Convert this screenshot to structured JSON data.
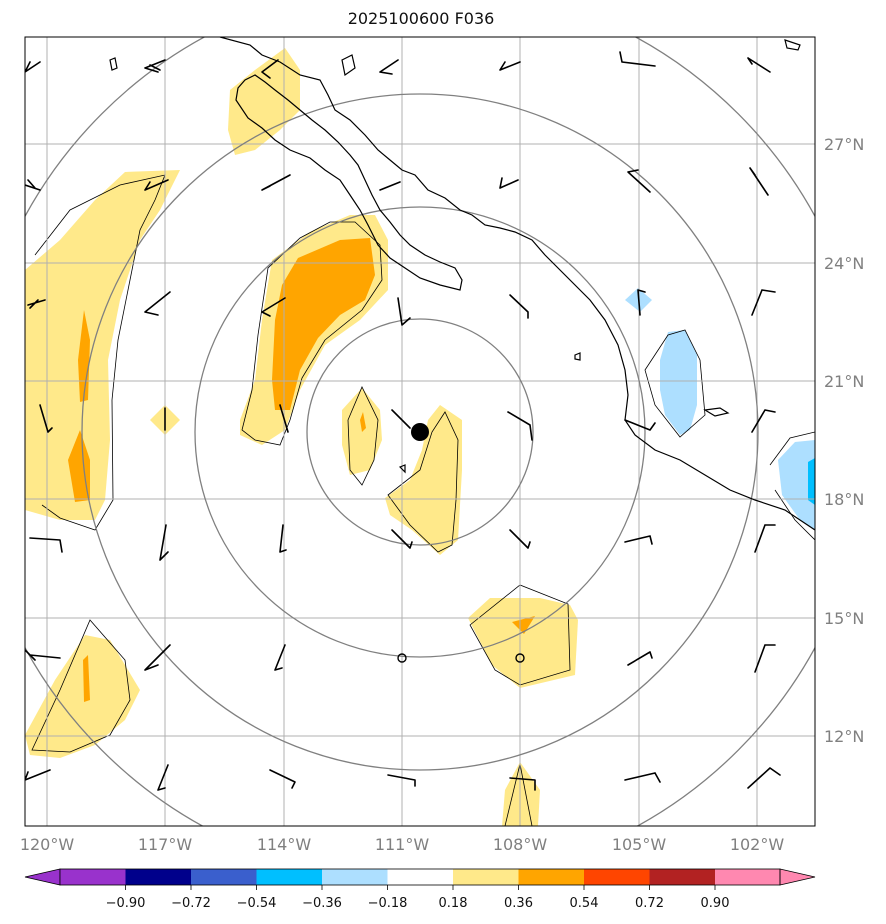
{
  "title": "2025100600 F036",
  "map": {
    "lat_labels": [
      "27°N",
      "24°N",
      "21°N",
      "18°N",
      "15°N",
      "12°N"
    ],
    "lon_labels": [
      "120°W",
      "117°W",
      "114°W",
      "111°W",
      "108°W",
      "105°W",
      "102°W"
    ],
    "center_marker": "storm-center",
    "colors": {
      "grid": "#b0b0b0",
      "range_rings": "#808080",
      "coast": "#000000",
      "fill_018_036": "#ffe98a",
      "fill_036_054": "#ffa500",
      "fill_neg_018_036": "#addfff",
      "fill_neg_036_054": "#00bfff"
    }
  },
  "colorbar": {
    "ticks": [
      "−0.90",
      "−0.72",
      "−0.54",
      "−0.36",
      "−0.18",
      "0.18",
      "0.36",
      "0.54",
      "0.72",
      "0.90"
    ],
    "colors": [
      "#9932cc",
      "#00008b",
      "#3a5fcd",
      "#00bfff",
      "#addfff",
      "#ffffff",
      "#ffe98a",
      "#ffa500",
      "#ff4500",
      "#b22222",
      "#ff88b0",
      "#ff88b0"
    ]
  }
}
